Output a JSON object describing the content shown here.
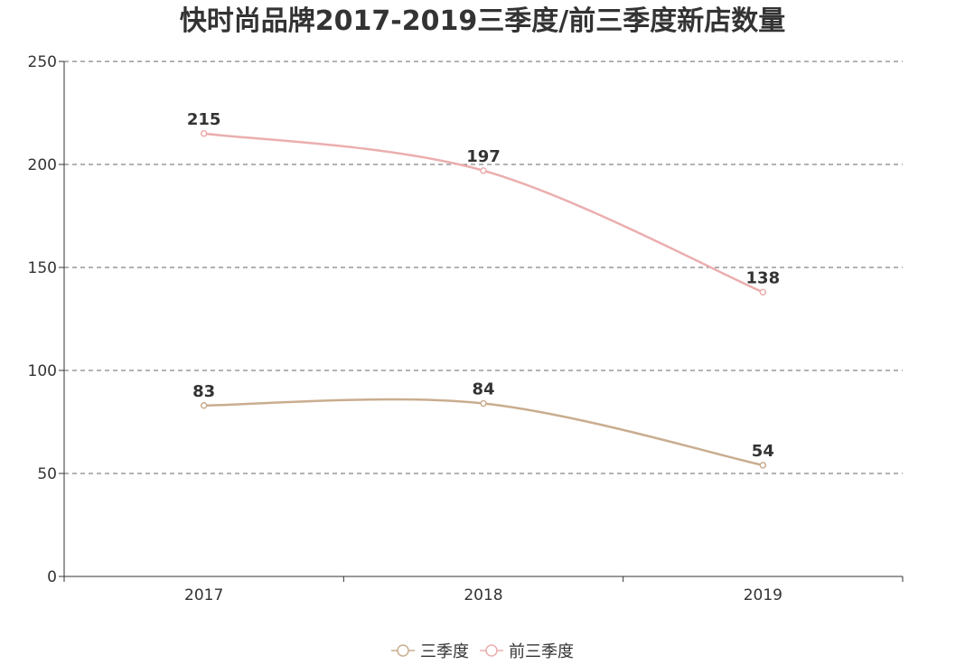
{
  "chart_data": {
    "type": "line",
    "title": "快时尚品牌2017-2019三季度/前三季度新店数量",
    "categories": [
      "2017",
      "2018",
      "2019"
    ],
    "series": [
      {
        "name": "三季度",
        "values": [
          83,
          84,
          54
        ],
        "color": "#c9ad8f"
      },
      {
        "name": "前三季度",
        "values": [
          215,
          197,
          138
        ],
        "color": "#ebaeae"
      }
    ],
    "ylim": [
      0,
      250
    ],
    "yticks": [
      0,
      50,
      100,
      150,
      200,
      250
    ],
    "grid": "horizontal dashed",
    "legend_position": "bottom-center",
    "smooth": true
  }
}
